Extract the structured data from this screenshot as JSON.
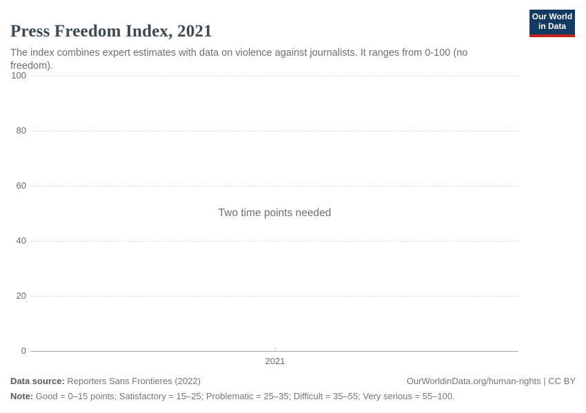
{
  "header": {
    "title": "Press Freedom Index, 2021",
    "subtitle": "The index combines expert estimates with data on violence against journalists. It ranges from 0-100 (no freedom).",
    "logo": {
      "line1": "Our World",
      "line2": "in Data",
      "bg_color": "#133a63",
      "accent_color": "#c62120"
    }
  },
  "chart_data": {
    "type": "line",
    "title": "Press Freedom Index, 2021",
    "message": "Two time points needed",
    "series": [],
    "x": [
      "2021"
    ],
    "xticks": [
      "2021"
    ],
    "yticks": [
      0,
      20,
      40,
      60,
      80,
      100
    ],
    "ylim": [
      0,
      100
    ],
    "xlabel": "",
    "ylabel": "",
    "grid": "horizontal-dashed",
    "legend_position": "none"
  },
  "footer": {
    "datasource_label": "Data source:",
    "datasource_value": "Reporters Sans Frontieres (2022)",
    "url_text": "OurWorldinData.org/human-rights | CC BY",
    "note_label": "Note:",
    "note_value": "Good = 0–15 points; Satisfactory = 15–25; Problematic = 25–35; Difficult = 35–55; Very serious = 55–100."
  },
  "colors": {
    "title_text": "#3d4a54",
    "body_text": "#6e6e6e",
    "tick_text": "#686868",
    "gridline": "#dddddd",
    "axis_line": "#a3a3a3",
    "footer_text": "#757575"
  }
}
